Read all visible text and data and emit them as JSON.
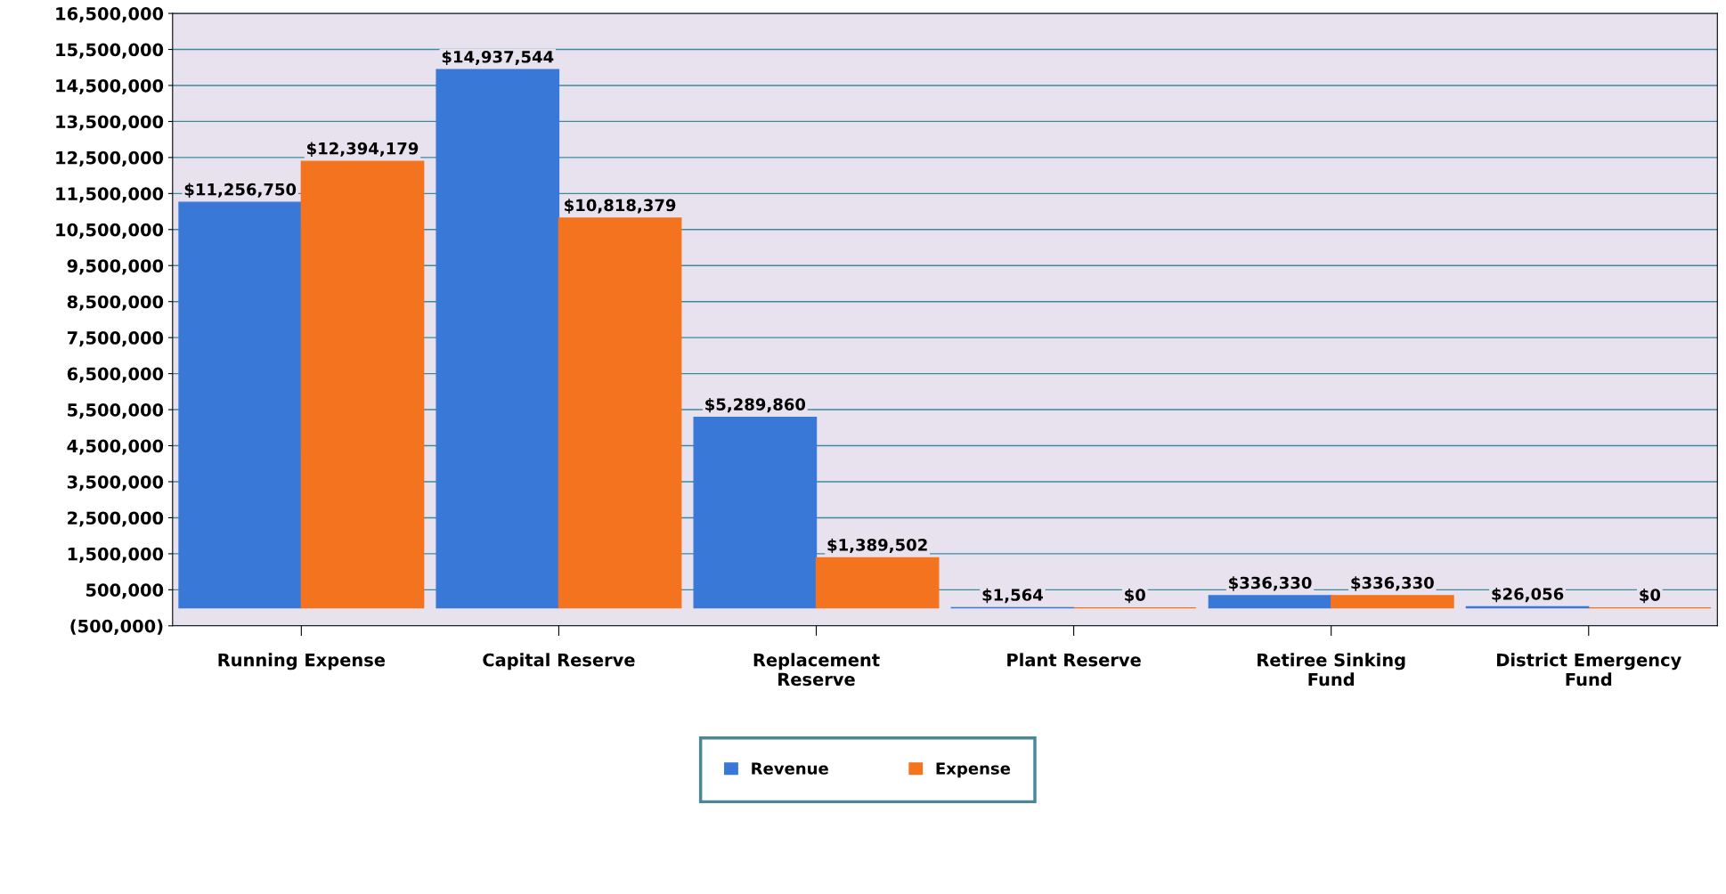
{
  "chart_data": {
    "type": "bar",
    "categories": [
      "Running Expense",
      "Capital Reserve",
      "Replacement\nReserve",
      "Plant Reserve",
      "Retiree Sinking\nFund",
      "District Emergency\nFund"
    ],
    "series": [
      {
        "name": "Revenue",
        "color": "#3a78d8",
        "values": [
          11256750,
          14937544,
          5289860,
          1564,
          336330,
          26056
        ],
        "value_labels": [
          "$11,256,750",
          "$14,937,544",
          "$5,289,860",
          "$1,564",
          "$336,330",
          "$26,056"
        ]
      },
      {
        "name": "Expense",
        "color": "#f4731f",
        "values": [
          12394179,
          10818379,
          1389502,
          0,
          336330,
          0
        ],
        "value_labels": [
          "$12,394,179",
          "$10,818,379",
          "$1,389,502",
          "$0",
          "$336,330",
          "$0"
        ]
      }
    ],
    "ylim": [
      -500000,
      16500000
    ],
    "yticks": [
      {
        "value": -500000,
        "label": "(500,000)"
      },
      {
        "value": 500000,
        "label": "500,000"
      },
      {
        "value": 1500000,
        "label": "1,500,000"
      },
      {
        "value": 2500000,
        "label": "2,500,000"
      },
      {
        "value": 3500000,
        "label": "3,500,000"
      },
      {
        "value": 4500000,
        "label": "4,500,000"
      },
      {
        "value": 5500000,
        "label": "5,500,000"
      },
      {
        "value": 6500000,
        "label": "6,500,000"
      },
      {
        "value": 7500000,
        "label": "7,500,000"
      },
      {
        "value": 8500000,
        "label": "8,500,000"
      },
      {
        "value": 9500000,
        "label": "9,500,000"
      },
      {
        "value": 10500000,
        "label": "10,500,000"
      },
      {
        "value": 11500000,
        "label": "11,500,000"
      },
      {
        "value": 12500000,
        "label": "12,500,000"
      },
      {
        "value": 13500000,
        "label": "13,500,000"
      },
      {
        "value": 14500000,
        "label": "14,500,000"
      },
      {
        "value": 15500000,
        "label": "15,500,000"
      },
      {
        "value": 16500000,
        "label": "16,500,000"
      }
    ],
    "grid": "y",
    "legend": "bottom"
  }
}
